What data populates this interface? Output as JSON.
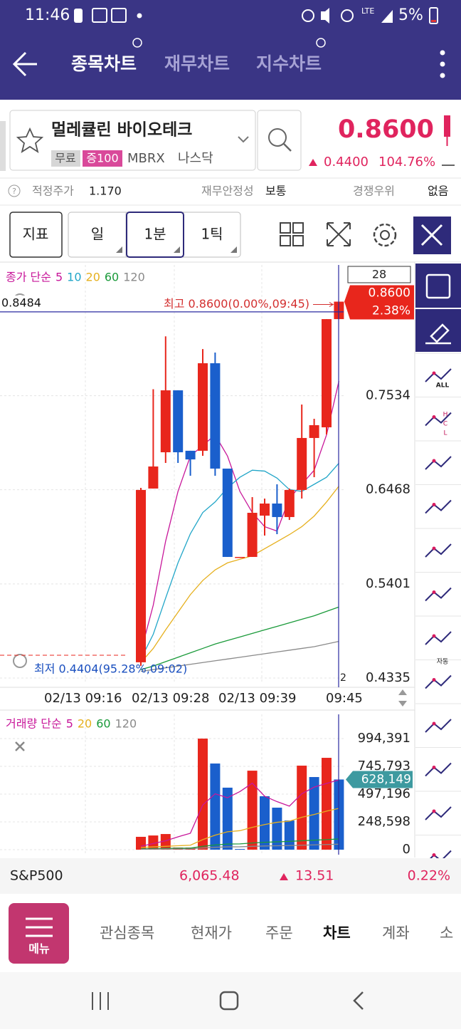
{
  "status_bar": {
    "time": "11:46",
    "network": "LTE",
    "battery": "5%"
  },
  "header": {
    "tabs": [
      "종목차트",
      "재무차트",
      "지수차트"
    ]
  },
  "stock": {
    "name": "멀레큘린 바이오테크",
    "tags": [
      "무료",
      "증100"
    ],
    "ticker": "MBRX",
    "market": "나스닥",
    "price": "0.8600",
    "change": "0.4400",
    "change_pct": "104.76%"
  },
  "info": [
    {
      "label": "적정주가",
      "value": "1.170"
    },
    {
      "label": "재무안정성",
      "value": "보통"
    },
    {
      "label": "경쟁우위",
      "value": "없음"
    }
  ],
  "toolbar": [
    "지표",
    "일",
    "1분",
    "1틱"
  ],
  "sidebar_labels": [
    "ALL",
    "H",
    "C",
    "L",
    "자동"
  ],
  "chart_data": [
    {
      "type": "candlestick",
      "legend_title": "종가 단순",
      "open": [
        0.4513,
        0.6482,
        0.6893,
        0.7595,
        0.691,
        0.691,
        0.7902,
        0.6708,
        0.5707,
        0.5707,
        0.6175,
        0.6312,
        0.6159,
        0.6466,
        0.7055,
        0.7176,
        0.8402
      ],
      "high": [
        0.649,
        0.7608,
        0.8207,
        0.7595,
        0.691,
        0.8063,
        0.8023,
        0.6708,
        0.5707,
        0.6385,
        0.6368,
        0.653,
        0.6482,
        0.7434,
        0.7273,
        0.8402,
        0.86
      ],
      "low": [
        0.4473,
        0.6482,
        0.6772,
        0.6772,
        0.6627,
        0.6853,
        0.6627,
        0.5707,
        0.5707,
        0.5707,
        0.5949,
        0.5965,
        0.6126,
        0.6369,
        0.6611,
        0.7095,
        0.8402
      ],
      "close": [
        0.6466,
        0.6732,
        0.7595,
        0.6893,
        0.6812,
        0.7902,
        0.6708,
        0.5707,
        0.5707,
        0.6207,
        0.6312,
        0.6159,
        0.6466,
        0.7055,
        0.72,
        0.8402,
        0.86
      ],
      "up_color": "#e8261c",
      "down_color": "#1a5fcc",
      "moving_averages": [
        {
          "name": "5",
          "color": "#c8179a",
          "values": [
            0.463,
            0.516,
            0.5885,
            0.645,
            0.685,
            0.697,
            0.709,
            0.685,
            0.645,
            0.621,
            0.605,
            0.6,
            0.637,
            0.653,
            0.669,
            0.709,
            0.77
          ]
        },
        {
          "name": "10",
          "color": "#22a6c8",
          "values": [
            0.455,
            0.483,
            0.524,
            0.564,
            0.597,
            0.621,
            0.633,
            0.649,
            0.661,
            0.669,
            0.668,
            0.66,
            0.647,
            0.645,
            0.653,
            0.661,
            0.677
          ]
        },
        {
          "name": "20",
          "color": "#e6b01e",
          "values": [
            0.451,
            0.467,
            0.488,
            0.508,
            0.528,
            0.544,
            0.556,
            0.564,
            0.568,
            0.572,
            0.58,
            0.588,
            0.596,
            0.605,
            0.617,
            0.633,
            0.651
          ]
        },
        {
          "name": "60",
          "color": "#1a9a3a",
          "values": [
            0.443,
            0.447,
            0.452,
            0.457,
            0.462,
            0.467,
            0.472,
            0.476,
            0.48,
            0.484,
            0.488,
            0.492,
            0.496,
            0.5,
            0.504,
            0.509,
            0.514
          ]
        },
        {
          "name": "120",
          "color": "#8a8a8a",
          "values": [
            0.441,
            0.443,
            0.445,
            0.447,
            0.449,
            0.451,
            0.453,
            0.455,
            0.457,
            0.459,
            0.461,
            0.463,
            0.465,
            0.467,
            0.469,
            0.472,
            0.475
          ]
        }
      ],
      "ylim": [
        0.427,
        0.9016
      ],
      "yticks": [
        0.4335,
        0.5401,
        0.6468,
        0.7534
      ],
      "x_axis_labels": [
        "02/13 09:16",
        "02/13 09:28",
        "02/13 09:39",
        "09:45"
      ],
      "crosshair": 0.8484,
      "last_tag": {
        "value": 0.86,
        "label": "0.8600",
        "change": "2.38%"
      },
      "counter": "28",
      "corner_label": "2",
      "annotations": {
        "high": "최고 0.8600(0.00%,09:45)",
        "low": "최저 0.4404(95.28%,09:02)"
      }
    },
    {
      "type": "bar",
      "legend_title": "거래량 단순",
      "values": [
        115000,
        127000,
        140000,
        19000,
        19000,
        994000,
        771000,
        555000,
        6000,
        707000,
        478000,
        376000,
        261000,
        752000,
        650000,
        822000,
        628149
      ],
      "colors": [
        "#e8261c",
        "#e8261c",
        "#e8261c",
        "#e8261c",
        "#e8261c",
        "#e8261c",
        "#1a5fcc",
        "#1a5fcc",
        "#1a5fcc",
        "#e8261c",
        "#1a5fcc",
        "#1a5fcc",
        "#1a5fcc",
        "#e8261c",
        "#1a5fcc",
        "#e8261c",
        "#1a5fcc"
      ],
      "moving_averages": [
        {
          "name": "5",
          "color": "#c8179a",
          "values": [
            30000,
            55000,
            80000,
            115000,
            147000,
            400000,
            500000,
            465000,
            520000,
            595000,
            478000,
            430000,
            390000,
            500000,
            560000,
            593000,
            625000
          ]
        },
        {
          "name": "20",
          "color": "#e6b01e",
          "values": [
            20000,
            25000,
            30000,
            35000,
            40000,
            90000,
            130000,
            160000,
            170000,
            200000,
            225000,
            245000,
            255000,
            290000,
            315000,
            345000,
            370000
          ]
        },
        {
          "name": "60",
          "color": "#1a9a3a",
          "values": [
            8000,
            10000,
            12000,
            13000,
            14000,
            30000,
            42000,
            50000,
            52000,
            60000,
            66000,
            70000,
            74000,
            80000,
            85000,
            90000,
            96000
          ]
        },
        {
          "name": "120",
          "color": "#8a8a8a",
          "values": [
            4000,
            5000,
            6000,
            6500,
            7000,
            15000,
            21000,
            25000,
            26000,
            30000,
            33000,
            35000,
            37000,
            40000,
            43000,
            46000,
            49000
          ]
        }
      ],
      "ylim": [
        0,
        1153700
      ],
      "yticks": [
        0,
        {
          "value": 248598,
          "label": "248,598"
        },
        {
          "value": 497196,
          "label": "497,196"
        },
        {
          "value": 745793,
          "label": "745,793"
        },
        {
          "value": 994391,
          "label": "994,391"
        }
      ],
      "last_tag": {
        "value": 628149,
        "label": "628,149"
      }
    }
  ],
  "ticker_bar": {
    "index": "S&P500",
    "value": "6,065.48",
    "change": "13.51",
    "change_pct": "0.22%"
  },
  "nav": {
    "menu": "메뉴",
    "items": [
      "관심종목",
      "현재가",
      "주문",
      "차트",
      "계좌",
      "소"
    ]
  }
}
